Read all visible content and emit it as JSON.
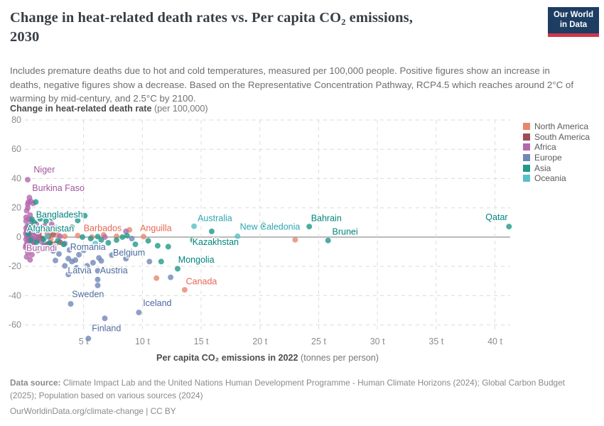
{
  "header": {
    "title_line1": "Change in heat-related death rates vs. Per capita CO₂ emissions,",
    "title_line2": "2030",
    "subtitle": "Includes premature deaths due to hot and cold temperatures, measured per 100,000 people. Positive figures show an increase in deaths, negative figures show a decrease. Based on the Representative Concentration Pathway, RCP4.5 which reaches around 2°C of warming by mid-century, and 2.5°C by 2100.",
    "logo": {
      "line1": "Our World",
      "line2": "in Data",
      "bg": "#1d3d63",
      "accent": "#d0374d"
    }
  },
  "footer": {
    "source_bold": "Data source:",
    "source_rest": " Climate Impact Lab and the United Nations Human Development Programme - Human Climate Horizons (2024); Global Carbon Budget (2025); Population based on various sources (2024)",
    "url": "OurWorldinData.org/climate-change",
    "separator": " | ",
    "license": "CC BY"
  },
  "chart_data": {
    "type": "scatter",
    "title": "Change in heat-related death rates vs. Per capita CO₂ emissions, 2030",
    "ylabel_bold": "Change in heat-related death rate",
    "ylabel_normal": " (per 100,000)",
    "xlabel_bold": "Per capita CO₂ emissions in 2022",
    "xlabel_normal": " (tonnes per person)",
    "xlim": [
      0,
      41.3
    ],
    "ylim": [
      -65.5,
      80
    ],
    "grid": "dashed",
    "legend_position": "right",
    "xticks": [
      {
        "value": 5,
        "label": "5 t"
      },
      {
        "value": 10,
        "label": "10 t"
      },
      {
        "value": 15,
        "label": "15 t"
      },
      {
        "value": 20,
        "label": "20 t"
      },
      {
        "value": 25,
        "label": "25 t"
      },
      {
        "value": 30,
        "label": "30 t"
      },
      {
        "value": 35,
        "label": "35 t"
      },
      {
        "value": 40,
        "label": "40 t"
      }
    ],
    "yticks": [
      80,
      60,
      40,
      20,
      0,
      -20,
      -40,
      -60
    ],
    "series": [
      {
        "name": "North America",
        "color": "#e8876f",
        "label_color": "#e56753",
        "points": [
          [
            1.9,
            2.5
          ],
          [
            2.2,
            -1.5
          ],
          [
            2.8,
            1.5
          ],
          [
            3.4,
            0.5
          ],
          [
            4.5,
            1
          ],
          [
            5.7,
            0
          ],
          [
            6.7,
            1.5
          ],
          [
            7.8,
            0.5
          ],
          [
            8.9,
            4.9
          ],
          [
            10.1,
            0.3
          ],
          [
            11.2,
            -28
          ],
          [
            13.6,
            -36
          ],
          [
            23.0,
            -1.8
          ]
        ]
      },
      {
        "name": "South America",
        "color": "#9e4d53",
        "label_color": "#883039",
        "points": [
          [
            0.8,
            -3
          ],
          [
            0.9,
            3
          ],
          [
            1.1,
            -2
          ],
          [
            1.2,
            1.5
          ],
          [
            1.5,
            -1
          ],
          [
            1.7,
            -6
          ],
          [
            1.9,
            -4.9
          ],
          [
            2.0,
            0.5
          ],
          [
            2.2,
            -4.5
          ],
          [
            2.4,
            2
          ],
          [
            2.6,
            -4.7
          ],
          [
            3.0,
            -3.5
          ]
        ]
      },
      {
        "name": "Africa",
        "color": "#b468ae",
        "label_color": "#a2559c",
        "points": [
          [
            0.24,
            39.2
          ],
          [
            0.39,
            27
          ],
          [
            0.3,
            24
          ],
          [
            0.5,
            24.5
          ],
          [
            0.7,
            23
          ],
          [
            0.25,
            22.5
          ],
          [
            0.25,
            20
          ],
          [
            0.15,
            18
          ],
          [
            0.45,
            15
          ],
          [
            0.1,
            13.5
          ],
          [
            0.3,
            12.2
          ],
          [
            0.55,
            11
          ],
          [
            0.1,
            11
          ],
          [
            0.97,
            8.8
          ],
          [
            1.67,
            7.7
          ],
          [
            2.28,
            8.8
          ],
          [
            0.2,
            7.5
          ],
          [
            0.6,
            6.5
          ],
          [
            0.1,
            6
          ],
          [
            0.35,
            5
          ],
          [
            0.9,
            4.5
          ],
          [
            0.15,
            4
          ],
          [
            0.5,
            3.5
          ],
          [
            1.2,
            3
          ],
          [
            0.08,
            2.5
          ],
          [
            0.3,
            2
          ],
          [
            0.7,
            1.5
          ],
          [
            0.15,
            1
          ],
          [
            0.45,
            0.5
          ],
          [
            1.0,
            0
          ],
          [
            0.25,
            -0.5
          ],
          [
            0.6,
            -1
          ],
          [
            0.1,
            -1.5
          ],
          [
            0.85,
            -2
          ],
          [
            0.35,
            -2.5
          ],
          [
            1.4,
            -3
          ],
          [
            0.2,
            -3.5
          ],
          [
            0.55,
            -4.5
          ],
          [
            0.1,
            -5.5
          ],
          [
            0.75,
            -6
          ],
          [
            0.06,
            -7
          ],
          [
            0.4,
            -8
          ],
          [
            1.1,
            -9
          ],
          [
            0.25,
            -10.5
          ],
          [
            0.6,
            -12
          ],
          [
            0.15,
            -13.5
          ],
          [
            0.45,
            -15.5
          ],
          [
            2.6,
            6.2
          ],
          [
            3.0,
            0.5
          ],
          [
            6.8,
            0
          ],
          [
            8.6,
            3.9
          ]
        ]
      },
      {
        "name": "Europe",
        "color": "#7287b9",
        "label_color": "#4c6a9c",
        "points": [
          [
            1.6,
            -5.5
          ],
          [
            2.0,
            -7
          ],
          [
            2.4,
            -9.5
          ],
          [
            2.9,
            -11.5
          ],
          [
            3.4,
            -4.4
          ],
          [
            3.8,
            -8.8
          ],
          [
            3.4,
            -19.6
          ],
          [
            3.7,
            -14.7
          ],
          [
            4.0,
            -16.7
          ],
          [
            4.3,
            -15.7
          ],
          [
            3.7,
            -25.5
          ],
          [
            4.4,
            -21
          ],
          [
            2.6,
            -16
          ],
          [
            4.6,
            -12
          ],
          [
            5.0,
            -9
          ],
          [
            5.3,
            -19.6
          ],
          [
            5.8,
            -17.5
          ],
          [
            5.9,
            -6.5
          ],
          [
            6.3,
            -14.2
          ],
          [
            6.5,
            -16.2
          ],
          [
            6.2,
            -23
          ],
          [
            6.2,
            -29
          ],
          [
            6.2,
            -33
          ],
          [
            3.9,
            -45.6
          ],
          [
            6.8,
            -55.5
          ],
          [
            5.4,
            -69.3
          ],
          [
            9.7,
            -51.5
          ],
          [
            7.4,
            -12.3
          ],
          [
            8.6,
            -14.7
          ],
          [
            9.1,
            -1
          ],
          [
            10.6,
            -16.7
          ],
          [
            12.4,
            -27.5
          ]
        ]
      },
      {
        "name": "Asia",
        "color": "#219889",
        "label_color": "#00847e",
        "points": [
          [
            0.3,
            2
          ],
          [
            0.42,
            7.7
          ],
          [
            0.6,
            12.2
          ],
          [
            0.93,
            24
          ],
          [
            0.8,
            10
          ],
          [
            1.3,
            12.5
          ],
          [
            1.8,
            11
          ],
          [
            2.3,
            13
          ],
          [
            0.5,
            -2
          ],
          [
            1.0,
            -3.5
          ],
          [
            1.6,
            -1.5
          ],
          [
            2.1,
            -4
          ],
          [
            2.8,
            -2.5
          ],
          [
            3.3,
            -5
          ],
          [
            2.9,
            5.5
          ],
          [
            3.5,
            6
          ],
          [
            4.0,
            6.7
          ],
          [
            4.5,
            11.3
          ],
          [
            5.1,
            14.6
          ],
          [
            4.9,
            0
          ],
          [
            5.6,
            -1
          ],
          [
            6.2,
            0.3
          ],
          [
            6.5,
            -2
          ],
          [
            7.1,
            -3.9
          ],
          [
            7.8,
            -2
          ],
          [
            8.3,
            0
          ],
          [
            8.7,
            1
          ],
          [
            9.4,
            -4.9
          ],
          [
            10.5,
            -2.5
          ],
          [
            11.3,
            -5.9
          ],
          [
            11.6,
            -16.7
          ],
          [
            12.2,
            -6.5
          ],
          [
            13.0,
            -21.6
          ],
          [
            14.3,
            -2
          ],
          [
            15.9,
            3.9
          ],
          [
            20.3,
            8.5
          ],
          [
            24.2,
            7.2
          ],
          [
            25.8,
            -2.3
          ],
          [
            41.2,
            7.2
          ]
        ]
      },
      {
        "name": "Oceania",
        "color": "#56c1cb",
        "label_color": "#2ea5b0",
        "points": [
          [
            0.8,
            4.5
          ],
          [
            1.9,
            0.5
          ],
          [
            6.0,
            -4.4
          ],
          [
            14.4,
            7.4
          ],
          [
            18.1,
            0.6
          ]
        ]
      }
    ],
    "annotations": [
      {
        "label": "Niger",
        "x": 0.75,
        "y": 44,
        "series": "Africa"
      },
      {
        "label": "Burkina Faso",
        "x": 0.62,
        "y": 31.5,
        "series": "Africa"
      },
      {
        "label": "Bangladesh",
        "x": 0.95,
        "y": 13.2,
        "series": "Asia"
      },
      {
        "label": "Afghanistan",
        "x": 0.18,
        "y": 3.8,
        "series": "Asia"
      },
      {
        "label": "Burundi",
        "x": 0.12,
        "y": -9.5,
        "series": "Africa"
      },
      {
        "label": "Barbados",
        "x": 5.0,
        "y": 4.0,
        "series": "North America"
      },
      {
        "label": "Anguilla",
        "x": 9.8,
        "y": 4.2,
        "series": "North America"
      },
      {
        "label": "Romania",
        "x": 3.85,
        "y": -8.8,
        "series": "Europe"
      },
      {
        "label": "Belgium",
        "x": 7.5,
        "y": -12.6,
        "series": "Europe"
      },
      {
        "label": "Latvia",
        "x": 3.65,
        "y": -24.8,
        "series": "Europe"
      },
      {
        "label": "Austria",
        "x": 6.4,
        "y": -24.8,
        "series": "Europe"
      },
      {
        "label": "Sweden",
        "x": 4.0,
        "y": -41.0,
        "series": "Europe"
      },
      {
        "label": "Iceland",
        "x": 10.05,
        "y": -47.0,
        "series": "Europe"
      },
      {
        "label": "Finland",
        "x": 5.7,
        "y": -64.2,
        "series": "Europe"
      },
      {
        "label": "Mongolia",
        "x": 13.05,
        "y": -17.5,
        "series": "Asia"
      },
      {
        "label": "Kazakhstan",
        "x": 14.25,
        "y": -5.3,
        "series": "Asia"
      },
      {
        "label": "Canada",
        "x": 13.7,
        "y": -32.3,
        "series": "North America"
      },
      {
        "label": "Australia",
        "x": 14.7,
        "y": 11.0,
        "series": "Oceania"
      },
      {
        "label": "New Caledonia",
        "x": 18.3,
        "y": 5.0,
        "series": "Oceania"
      },
      {
        "label": "Bahrain",
        "x": 24.35,
        "y": 11.0,
        "series": "Asia"
      },
      {
        "label": "Brunei",
        "x": 26.15,
        "y": 1.6,
        "series": "Asia"
      },
      {
        "label": "Qatar",
        "x": 39.2,
        "y": 11.5,
        "series": "Asia"
      }
    ]
  }
}
